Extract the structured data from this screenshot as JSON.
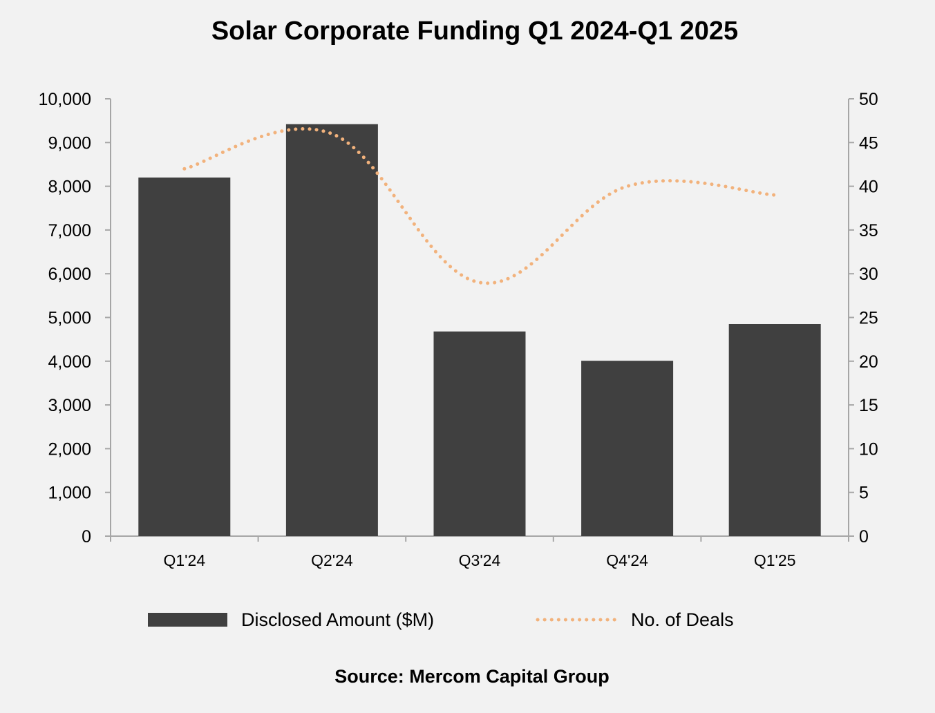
{
  "chart_data": {
    "type": "bar",
    "title": "Solar Corporate Funding Q1 2024-Q1 2025",
    "categories": [
      "Q1'24",
      "Q2'24",
      "Q3'24",
      "Q4'24",
      "Q1'25"
    ],
    "series": [
      {
        "name": "Disclosed Amount ($M)",
        "type": "bar",
        "axis": "left",
        "color": "#404040",
        "values": [
          8200,
          9420,
          4680,
          4010,
          4850
        ]
      },
      {
        "name": "No. of Deals",
        "type": "line",
        "style": "dotted",
        "axis": "right",
        "color": "#f2b27c",
        "values": [
          42,
          46,
          29,
          40,
          39
        ]
      }
    ],
    "y_left": {
      "min": 0,
      "max": 10000,
      "step": 1000,
      "tick_labels": [
        "0",
        "1,000",
        "2,000",
        "3,000",
        "4,000",
        "5,000",
        "6,000",
        "7,000",
        "8,000",
        "9,000",
        "10,000"
      ]
    },
    "y_right": {
      "min": 0,
      "max": 50,
      "step": 5,
      "tick_labels": [
        "0",
        "5",
        "10",
        "15",
        "20",
        "25",
        "30",
        "35",
        "40",
        "45",
        "50"
      ]
    },
    "grid": false,
    "legend_position": "bottom",
    "source": "Source: Mercom Capital Group"
  }
}
